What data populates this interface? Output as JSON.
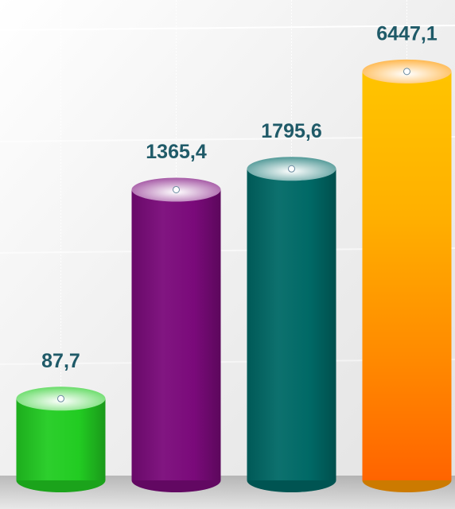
{
  "chart_data": {
    "type": "bar",
    "categories": [
      null,
      null,
      null,
      null
    ],
    "values": [
      87.7,
      1365.4,
      1795.6,
      6447.1
    ],
    "value_labels": [
      "87,7",
      "1365,4",
      "1795,6",
      "6447,1"
    ],
    "colors": [
      "#22cc22",
      "#7a0a7a",
      "#006966",
      "#ff9800"
    ],
    "log": true,
    "ylim": [
      30,
      7000
    ]
  }
}
